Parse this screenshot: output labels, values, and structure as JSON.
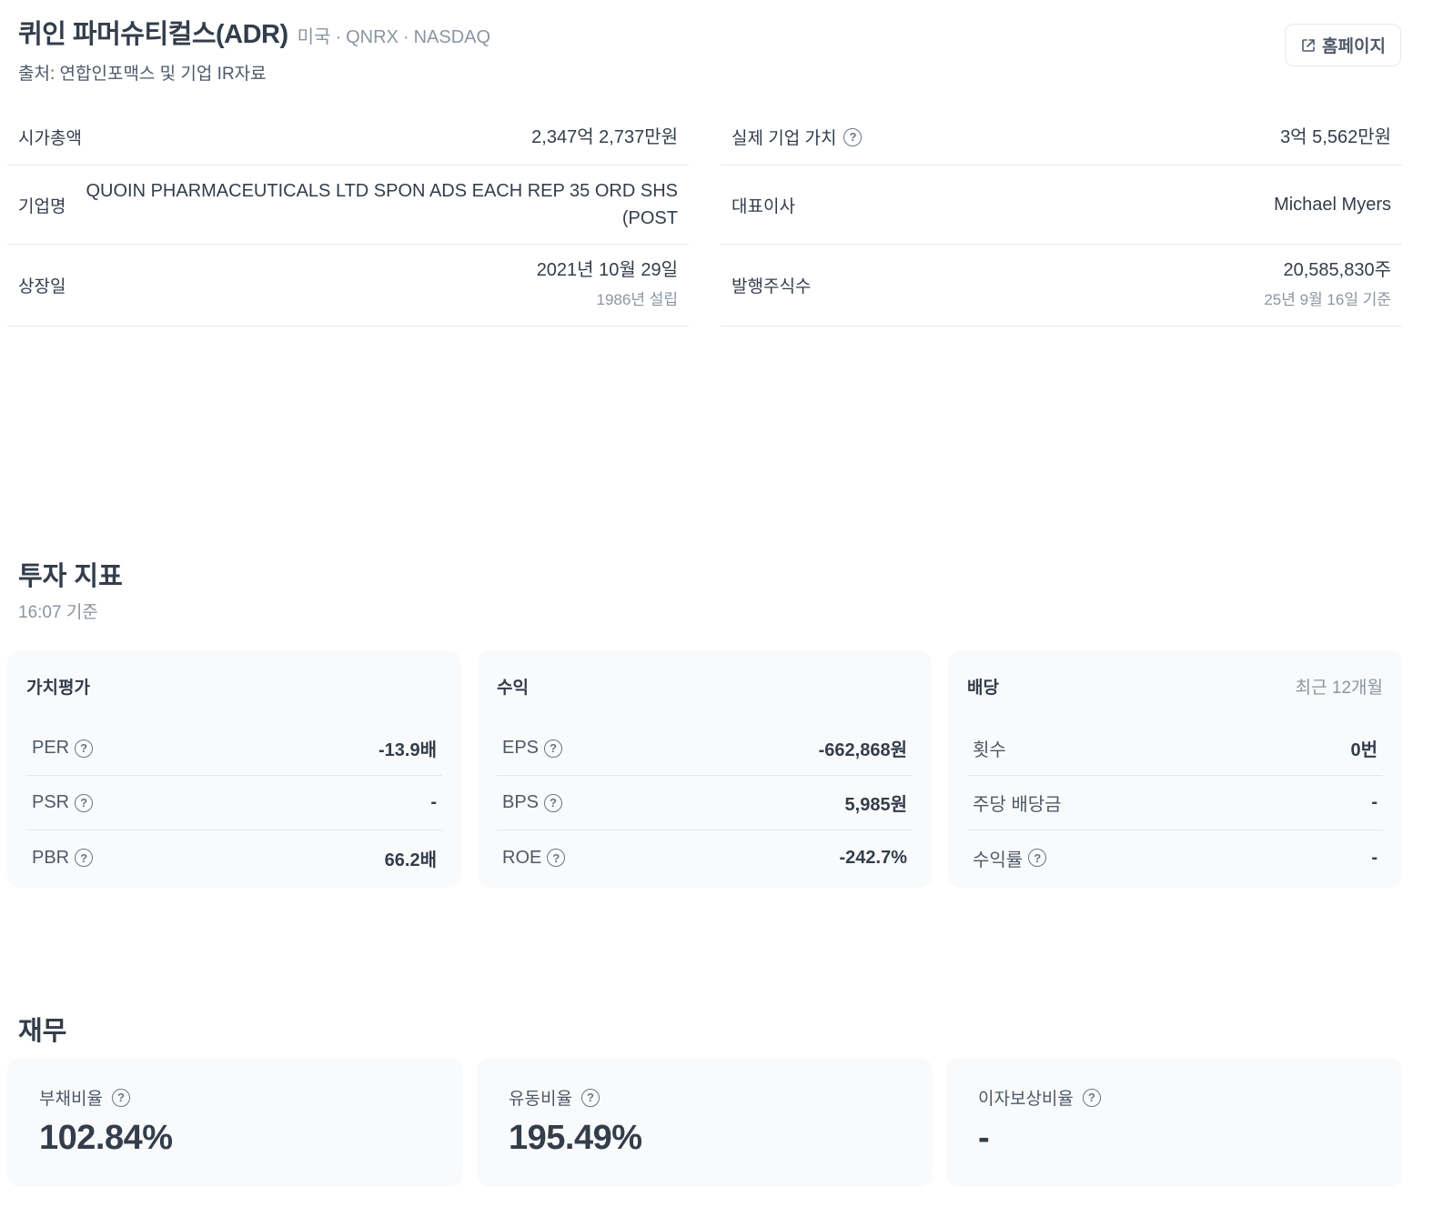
{
  "header": {
    "company_name": "퀴인 파머슈티컬스(ADR)",
    "country": "미국",
    "ticker": "QNRX",
    "exchange": "NASDAQ",
    "separator": "·",
    "source": "출처: 연합인포맥스 및 기업 IR자료",
    "homepage_label": "홈페이지"
  },
  "info": {
    "market_cap": {
      "label": "시가총액",
      "value": "2,347억 2,737만원"
    },
    "enterprise_value": {
      "label": "실제 기업 가치",
      "value": "3억 5,562만원"
    },
    "company_name": {
      "label": "기업명",
      "value": "QUOIN PHARMACEUTICALS LTD SPON ADS EACH REP 35 ORD SHS (POST"
    },
    "ceo": {
      "label": "대표이사",
      "value": "Michael Myers"
    },
    "listing_date": {
      "label": "상장일",
      "value": "2021년 10월 29일",
      "sub": "1986년 설립"
    },
    "shares_outstanding": {
      "label": "발행주식수",
      "value": "20,585,830주",
      "sub": "25년 9월 16일 기준"
    }
  },
  "indicators": {
    "title": "투자 지표",
    "as_of": "16:07 기준",
    "valuation": {
      "title": "가치평가",
      "rows": [
        {
          "label": "PER",
          "value": "-13.9배"
        },
        {
          "label": "PSR",
          "value": "-"
        },
        {
          "label": "PBR",
          "value": "66.2배"
        }
      ]
    },
    "profit": {
      "title": "수익",
      "rows": [
        {
          "label": "EPS",
          "value": "-662,868원"
        },
        {
          "label": "BPS",
          "value": "5,985원"
        },
        {
          "label": "ROE",
          "value": "-242.7%"
        }
      ]
    },
    "dividend": {
      "title": "배당",
      "period": "최근 12개월",
      "rows": [
        {
          "label": "횟수",
          "value": "0번"
        },
        {
          "label": "주당 배당금",
          "value": "-"
        },
        {
          "label": "수익률",
          "value": "-"
        }
      ]
    }
  },
  "finance": {
    "title": "재무",
    "debt_ratio": {
      "label": "부채비율",
      "value": "102.84%"
    },
    "current_ratio": {
      "label": "유동비율",
      "value": "195.49%"
    },
    "interest_coverage": {
      "label": "이자보상비율",
      "value": "-"
    }
  },
  "icons": {
    "help": "?",
    "external_link": "external-link-icon"
  },
  "colors": {
    "text_primary": "#333d4b",
    "text_secondary": "#8b95a1",
    "card_bg": "#f9fafb",
    "divider": "#e5e8eb"
  }
}
